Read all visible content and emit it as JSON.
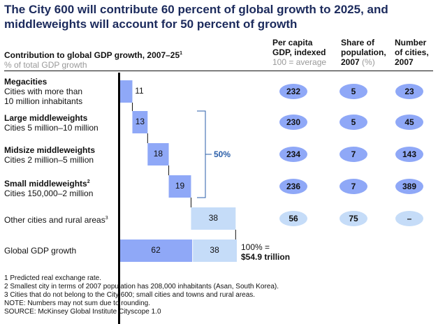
{
  "title": "The City 600 will contribute 60 percent of global growth to 2025, and middleweights will account for 50 percent of growth",
  "header": {
    "left_title": "Contribution to global GDP growth, 2007–25",
    "left_title_sup": "1",
    "left_subtitle": "% of total GDP growth",
    "col1_line1": "Per capita",
    "col1_line2": "GDP, indexed",
    "col1_sub": "100 = average",
    "col2_line1": "Share of",
    "col2_line2": "population,",
    "col2_line3": "2007",
    "col2_sub": "(%)",
    "col3_line1": "Number",
    "col3_line2": "of cities,",
    "col3_line3": "2007"
  },
  "rows": [
    {
      "name": "Megacities",
      "desc": "Cities with more than",
      "desc2": "10 million inhabitants",
      "sup": ""
    },
    {
      "name": "Large middleweights",
      "desc": "Cities 5 million–10 million",
      "sup": ""
    },
    {
      "name": "Midsize middleweights",
      "desc": "Cities 2 million–5 million",
      "sup": ""
    },
    {
      "name": "Small middleweights",
      "desc": "Cities 150,000–2 million",
      "sup": "2"
    },
    {
      "name": "",
      "desc": "Other cities and rural areas",
      "sup": "3"
    },
    {
      "name": "",
      "desc": "Global GDP growth",
      "sup": ""
    }
  ],
  "bracket_label": "50%",
  "total_label_1": "100% =",
  "total_label_2": "$54.9 trillion",
  "chart_data": {
    "type": "bar",
    "subtype": "waterfall",
    "title": "Contribution to global GDP growth, 2007–25",
    "ylabel": "% of total GDP growth",
    "xlim": [
      0,
      100
    ],
    "categories": [
      "Megacities",
      "Large middleweights",
      "Midsize middleweights",
      "Small middleweights",
      "Other cities and rural areas",
      "Global GDP growth"
    ],
    "values": [
      11,
      13,
      18,
      19,
      38,
      100
    ],
    "global_split": [
      62,
      38
    ],
    "bracket": {
      "rows": [
        "Large middleweights",
        "Midsize middleweights",
        "Small middleweights"
      ],
      "label": "50%"
    },
    "table": {
      "per_capita_gdp_indexed": [
        "232",
        "230",
        "234",
        "236",
        "56",
        ""
      ],
      "share_of_population_2007": [
        "5",
        "5",
        "7",
        "7",
        "75",
        ""
      ],
      "number_of_cities_2007": [
        "23",
        "45",
        "143",
        "389",
        "–",
        ""
      ]
    },
    "colors": {
      "city600": "#8fa8f7",
      "other": "#c5dcf8",
      "bracket": "#2a5ea8",
      "title": "#1b2a5c"
    }
  },
  "notes": [
    "1  Predicted real exchange rate.",
    "2  Smallest city in terms of 2007 population has 208,000 inhabitants (Asan, South Korea).",
    "3  Cities that do not belong to the City 600; small cities and towns and rural areas.",
    "NOTE: Numbers may not sum due to rounding.",
    "SOURCE: McKinsey Global Institute Cityscope 1.0"
  ]
}
